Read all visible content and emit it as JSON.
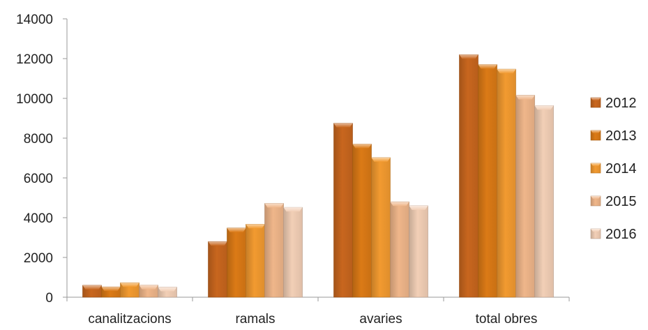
{
  "chart_data": {
    "type": "bar",
    "categories": [
      "canalitzacions",
      "ramals",
      "avaries",
      "total obres"
    ],
    "series": [
      {
        "name": "2012",
        "values": [
          600,
          2800,
          8750,
          12200
        ],
        "color": "#c8661e"
      },
      {
        "name": "2013",
        "values": [
          520,
          3480,
          7700,
          11700
        ],
        "color": "#db7a16"
      },
      {
        "name": "2014",
        "values": [
          730,
          3670,
          7020,
          11470
        ],
        "color": "#f29a30"
      },
      {
        "name": "2015",
        "values": [
          610,
          4720,
          4800,
          10160
        ],
        "color": "#efb68a"
      },
      {
        "name": "2016",
        "values": [
          510,
          4520,
          4600,
          9640
        ],
        "color": "#f2cfb6"
      }
    ],
    "yticks": [
      "0",
      "2000",
      "4000",
      "6000",
      "8000",
      "10000",
      "12000",
      "14000"
    ],
    "ylim": [
      0,
      14000
    ],
    "grid": false,
    "legend_position": "right",
    "title": "",
    "xlabel": "",
    "ylabel": ""
  }
}
